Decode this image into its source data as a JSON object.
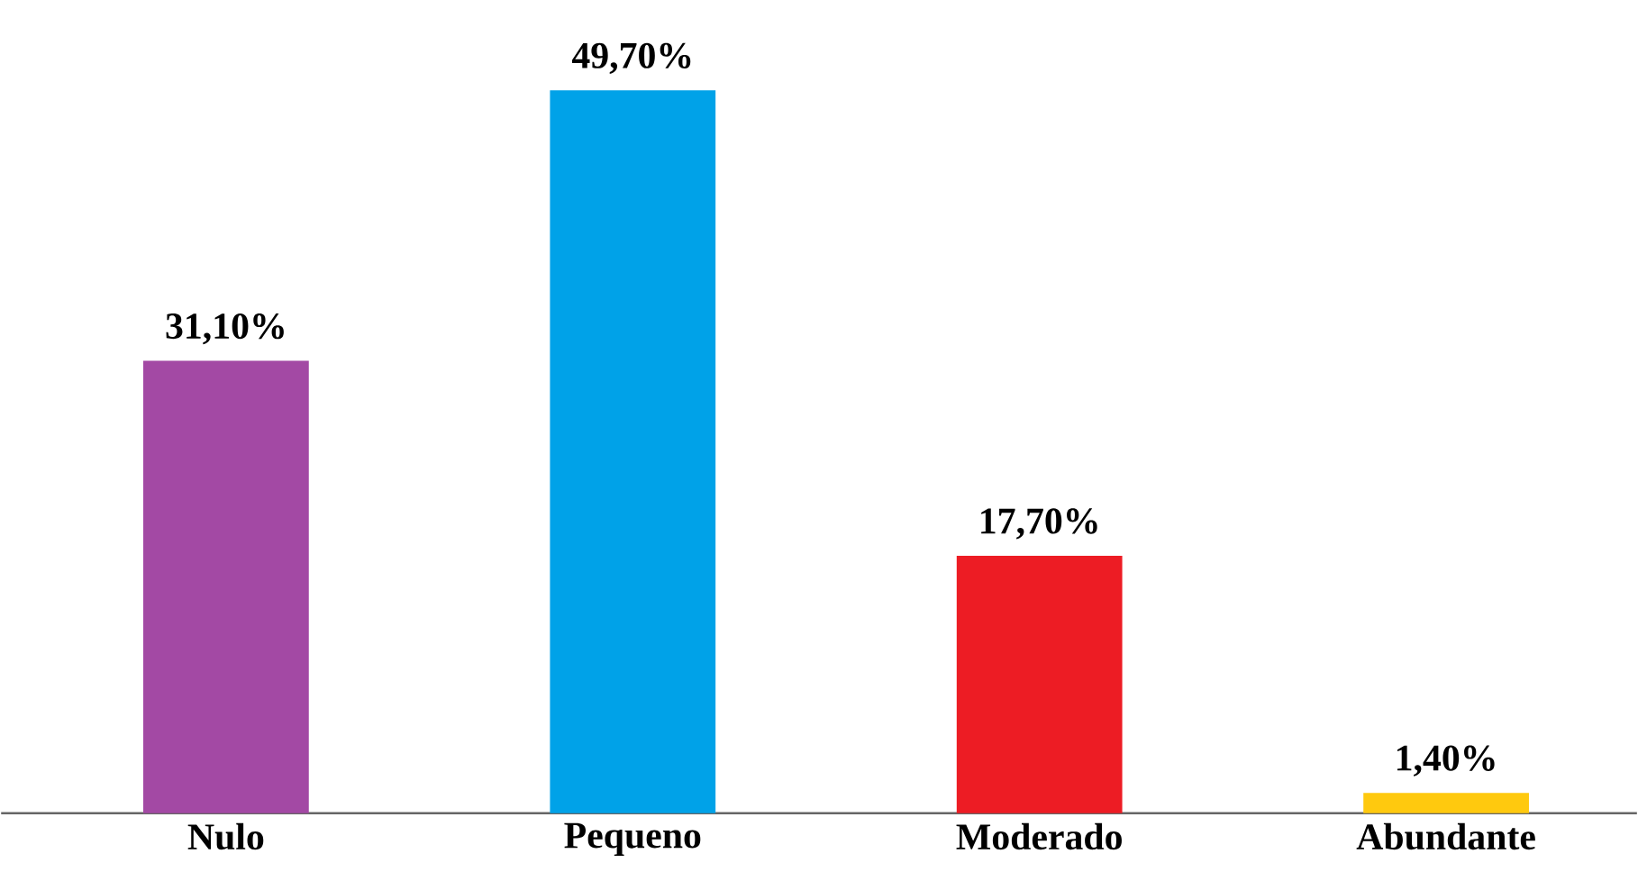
{
  "chart_data": {
    "type": "bar",
    "categories": [
      "Nulo",
      "Pequeno",
      "Moderado",
      "Abundante"
    ],
    "values": [
      31.1,
      49.7,
      17.7,
      1.4
    ],
    "value_labels": [
      "31,10%",
      "49,70%",
      "17,70%",
      "1,40%"
    ],
    "colors": [
      "#a349a4",
      "#00a2e8",
      "#ed1c24",
      "#ffc90e"
    ]
  }
}
